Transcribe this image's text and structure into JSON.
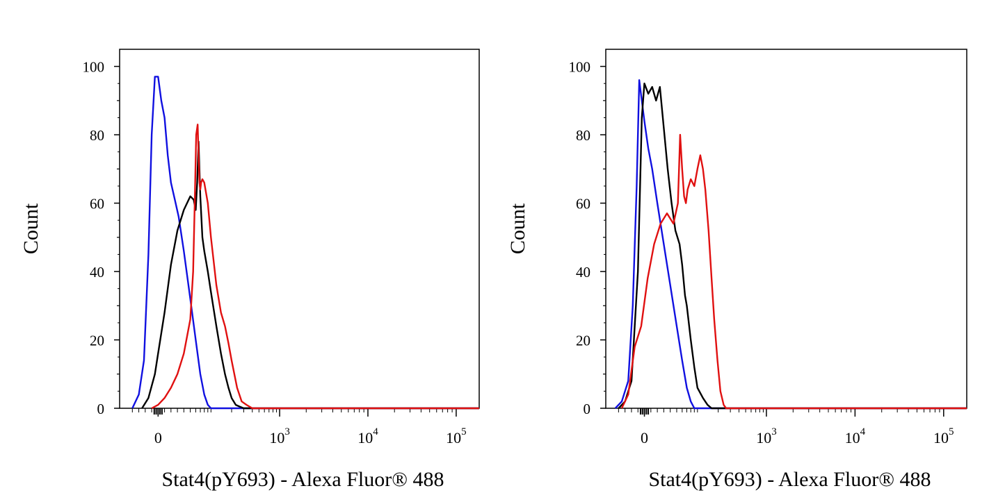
{
  "chart_data": [
    {
      "type": "line",
      "title": "",
      "xlabel": "Stat4(pY693) - Alexa Fluor® 488",
      "ylabel": "Count",
      "x_scale": "biexponential",
      "xlim": [
        -50,
        200000
      ],
      "ylim": [
        0,
        105
      ],
      "y_ticks": [
        "0",
        "20",
        "40",
        "60",
        "80",
        "100"
      ],
      "x_tick_labels": [
        {
          "base": "0",
          "exp": ""
        },
        {
          "base": "10",
          "exp": "3"
        },
        {
          "base": "10",
          "exp": "4"
        },
        {
          "base": "10",
          "exp": "5"
        }
      ],
      "grid": false,
      "series": [
        {
          "color": "#1010e0",
          "x": [
            -40,
            -30,
            -22,
            -15,
            -10,
            -5,
            0,
            5,
            10,
            15,
            20,
            26,
            32,
            40,
            50,
            60,
            70,
            80,
            90,
            100
          ],
          "y": [
            0,
            4,
            14,
            45,
            80,
            97,
            97,
            90,
            85,
            74,
            66,
            61,
            56,
            46,
            32,
            20,
            10,
            4,
            1,
            0
          ]
        },
        {
          "color": "#000000",
          "x": [
            -25,
            -15,
            -5,
            0,
            10,
            20,
            30,
            40,
            50,
            56,
            60,
            63,
            66,
            70,
            75,
            80,
            90,
            100,
            120,
            140,
            160,
            180,
            200,
            230,
            260,
            300,
            330
          ],
          "y": [
            0,
            3,
            10,
            16,
            28,
            42,
            52,
            58,
            62,
            61,
            58,
            66,
            78,
            62,
            50,
            46,
            40,
            34,
            24,
            16,
            10,
            6,
            3,
            1,
            0.5,
            0,
            0
          ]
        },
        {
          "color": "#e01010",
          "x": [
            -10,
            0,
            10,
            20,
            30,
            40,
            50,
            55,
            58,
            61,
            64,
            66,
            68,
            70,
            72,
            75,
            80,
            90,
            100,
            120,
            140,
            160,
            180,
            200,
            240,
            280,
            330,
            400,
            480
          ],
          "y": [
            0,
            1,
            3,
            6,
            10,
            16,
            26,
            40,
            60,
            80,
            83,
            74,
            66,
            64,
            66,
            67,
            66,
            60,
            50,
            36,
            28,
            24,
            19,
            14,
            6,
            2,
            1,
            0,
            0
          ]
        }
      ]
    },
    {
      "type": "line",
      "title": "",
      "xlabel": "Stat4(pY693) - Alexa Fluor® 488",
      "ylabel": "Count",
      "x_scale": "biexponential",
      "xlim": [
        -50,
        200000
      ],
      "ylim": [
        0,
        105
      ],
      "y_ticks": [
        "0",
        "20",
        "40",
        "60",
        "80",
        "100"
      ],
      "x_tick_labels": [
        {
          "base": "0",
          "exp": ""
        },
        {
          "base": "10",
          "exp": "3"
        },
        {
          "base": "10",
          "exp": "4"
        },
        {
          "base": "10",
          "exp": "5"
        }
      ],
      "grid": false,
      "series": [
        {
          "color": "#1010e0",
          "x": [
            -45,
            -35,
            -25,
            -18,
            -12,
            -8,
            -4,
            0,
            6,
            12,
            20,
            30,
            40,
            50,
            60,
            70,
            80,
            90
          ],
          "y": [
            0,
            2,
            8,
            30,
            65,
            96,
            90,
            84,
            76,
            70,
            60,
            48,
            36,
            24,
            14,
            6,
            2,
            0
          ]
        },
        {
          "color": "#000000",
          "x": [
            -40,
            -30,
            -20,
            -10,
            -4,
            0,
            6,
            12,
            18,
            24,
            30,
            36,
            42,
            48,
            55,
            60,
            66,
            70,
            80,
            90,
            100,
            120,
            140,
            160,
            200
          ],
          "y": [
            0,
            2,
            8,
            40,
            85,
            95,
            92,
            94,
            90,
            94,
            82,
            70,
            60,
            52,
            48,
            42,
            33,
            30,
            20,
            12,
            6,
            3,
            1,
            0,
            0
          ]
        },
        {
          "color": "#e01010",
          "x": [
            -35,
            -25,
            -15,
            -5,
            5,
            15,
            25,
            35,
            45,
            52,
            56,
            60,
            64,
            68,
            72,
            80,
            90,
            100,
            110,
            120,
            130,
            145,
            160,
            175,
            195,
            215,
            240,
            260,
            280
          ],
          "y": [
            0,
            4,
            18,
            24,
            38,
            48,
            54,
            57,
            54,
            60,
            80,
            70,
            62,
            60,
            64,
            67,
            65,
            70,
            74,
            70,
            64,
            52,
            38,
            26,
            14,
            5,
            1,
            0,
            0
          ]
        }
      ]
    }
  ]
}
